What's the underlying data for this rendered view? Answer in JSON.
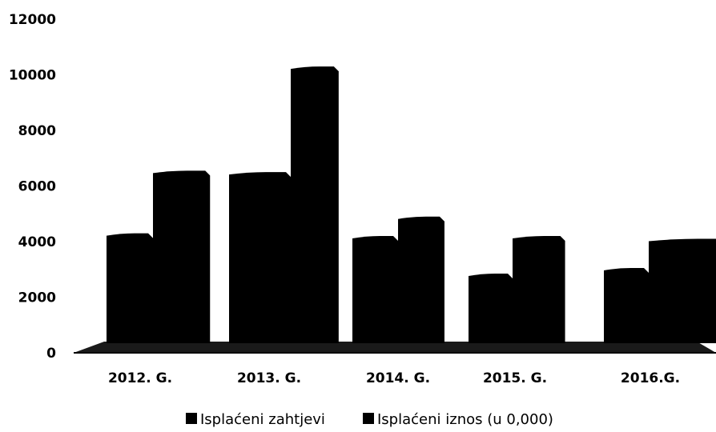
{
  "chart_data": {
    "type": "bar",
    "title": "",
    "xlabel": "",
    "ylabel": "",
    "categories": [
      "2012. G.",
      "2013. G.",
      "2014. G.",
      "2015. G.",
      "2016.G."
    ],
    "series": [
      {
        "name": "Isplaćeni zahtjevi",
        "values": [
          4300,
          6500,
          4200,
          2850,
          3050
        ],
        "color": "#000000"
      },
      {
        "name": "Isplaćeni iznos (u 0,000)",
        "values": [
          6550,
          10300,
          4900,
          4200,
          4100
        ],
        "color": "#000000"
      }
    ],
    "ylim": [
      0,
      12000
    ],
    "yticks": [
      0,
      2000,
      4000,
      6000,
      8000,
      10000,
      12000
    ],
    "grid": false,
    "legend_position": "bottom"
  }
}
